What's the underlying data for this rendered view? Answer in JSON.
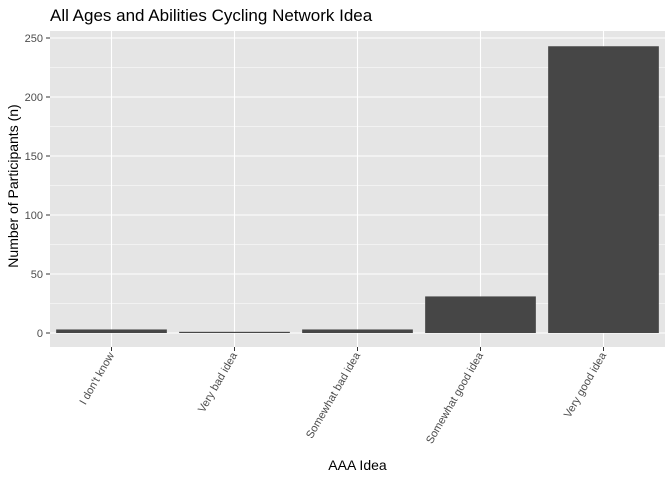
{
  "chart_data": {
    "type": "bar",
    "title": "All Ages and Abilities Cycling Network Idea",
    "xlabel": "AAA Idea",
    "ylabel": "Number of Participants (n)",
    "categories": [
      "I don't know",
      "Very bad idea",
      "Somewhat bad idea",
      "Somewhat good idea",
      "Very good idea"
    ],
    "values": [
      3,
      1,
      3,
      31,
      243
    ],
    "ylim": [
      0,
      255
    ],
    "yticks": [
      0,
      50,
      100,
      150,
      200,
      250
    ],
    "grid": true,
    "colors": {
      "panel": "#e5e5e5",
      "gridline": "#ffffff",
      "bar": "#464646",
      "tick_text": "#4d4d4d"
    }
  }
}
